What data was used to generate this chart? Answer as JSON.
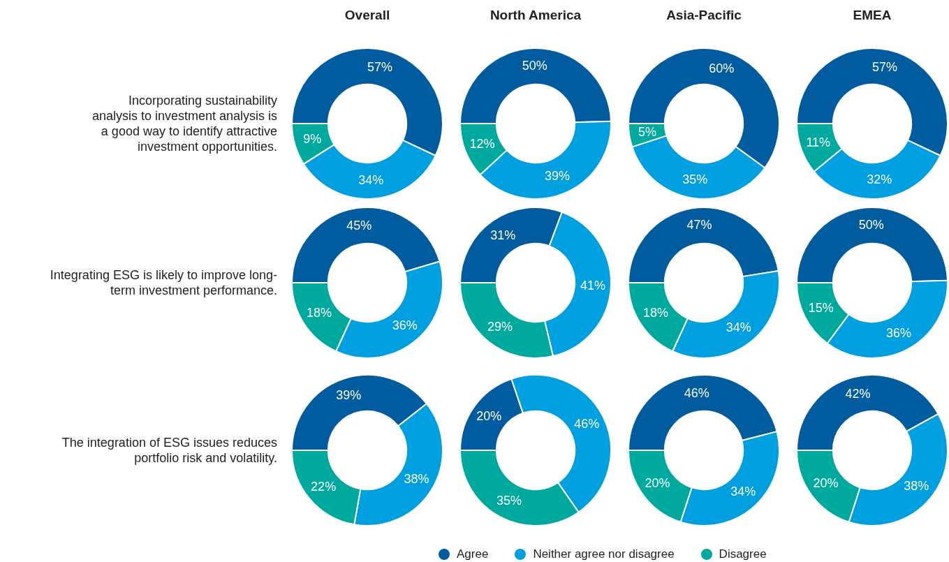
{
  "chart_data": [
    {
      "type": "donut",
      "title": "Overall",
      "ylabel": "Incorporating sustainability analysis to investment analysis is a good way to identify attractive investment opportunities.",
      "legend": "bottom",
      "categories": [
        "Agree",
        "Neither agree nor disagree",
        "Disagree"
      ],
      "values": [
        57,
        34,
        9
      ],
      "value_labels": [
        "57%",
        "34%",
        "9%"
      ],
      "colors": [
        "#005c9e",
        "#009fdf",
        "#00a99d"
      ]
    },
    {
      "type": "donut",
      "title": "North America",
      "categories": [
        null,
        null,
        null
      ],
      "values": [
        50,
        39,
        12
      ],
      "value_labels": [
        "50%",
        "39%",
        "12%"
      ],
      "colors": [
        "#005c9e",
        "#009fdf",
        "#00a99d"
      ]
    },
    {
      "type": "donut",
      "title": "Asia-Pacific",
      "categories": [
        null,
        null,
        null
      ],
      "values": [
        60,
        35,
        5
      ],
      "value_labels": [
        "60%",
        "35%",
        "5%"
      ],
      "colors": [
        "#005c9e",
        "#009fdf",
        "#00a99d"
      ]
    },
    {
      "type": "donut",
      "title": "EMEA",
      "categories": [
        null,
        null,
        null
      ],
      "values": [
        57,
        32,
        11
      ],
      "value_labels": [
        "57%",
        "32%",
        "11%"
      ],
      "colors": [
        "#005c9e",
        "#009fdf",
        "#00a99d"
      ]
    },
    {
      "type": "donut",
      "ylabel": "Integrating ESG is likely to improve long-term investment performance.",
      "categories": [
        null,
        null,
        null
      ],
      "values": [
        45,
        36,
        18
      ],
      "value_labels": [
        "45%",
        "36%",
        "18%"
      ],
      "colors": [
        "#005c9e",
        "#009fdf",
        "#00a99d"
      ]
    },
    {
      "type": "donut",
      "categories": [
        null,
        null,
        null
      ],
      "values": [
        31,
        41,
        29
      ],
      "value_labels": [
        "31%",
        "41%",
        "29%"
      ],
      "colors": [
        "#005c9e",
        "#009fdf",
        "#00a99d"
      ]
    },
    {
      "type": "donut",
      "categories": [
        null,
        null,
        null
      ],
      "values": [
        47,
        34,
        18
      ],
      "value_labels": [
        "47%",
        "34%",
        "18%"
      ],
      "colors": [
        "#005c9e",
        "#009fdf",
        "#00a99d"
      ]
    },
    {
      "type": "donut",
      "categories": [
        null,
        null,
        null
      ],
      "values": [
        50,
        36,
        15
      ],
      "value_labels": [
        "50%",
        "36%",
        "15%"
      ],
      "colors": [
        "#005c9e",
        "#009fdf",
        "#00a99d"
      ]
    },
    {
      "type": "donut",
      "ylabel": "The integration of ESG issues reduces portfolio risk and volatility.",
      "categories": [
        null,
        null,
        null
      ],
      "values": [
        39,
        38,
        22
      ],
      "value_labels": [
        "39%",
        "38%",
        "22%"
      ],
      "colors": [
        "#005c9e",
        "#009fdf",
        "#00a99d"
      ]
    },
    {
      "type": "donut",
      "categories": [
        null,
        null,
        null
      ],
      "values": [
        20,
        46,
        35
      ],
      "value_labels": [
        "20%",
        "46%",
        "35%"
      ],
      "colors": [
        "#005c9e",
        "#009fdf",
        "#00a99d"
      ]
    },
    {
      "type": "donut",
      "categories": [
        null,
        null,
        null
      ],
      "values": [
        46,
        34,
        20
      ],
      "value_labels": [
        "46%",
        "34%",
        "20%"
      ],
      "colors": [
        "#005c9e",
        "#009fdf",
        "#00a99d"
      ]
    },
    {
      "type": "donut",
      "categories": [
        null,
        null,
        null
      ],
      "values": [
        42,
        38,
        20
      ],
      "value_labels": [
        "42%",
        "38%",
        "20%"
      ],
      "colors": [
        "#005c9e",
        "#009fdf",
        "#00a99d"
      ]
    }
  ]
}
